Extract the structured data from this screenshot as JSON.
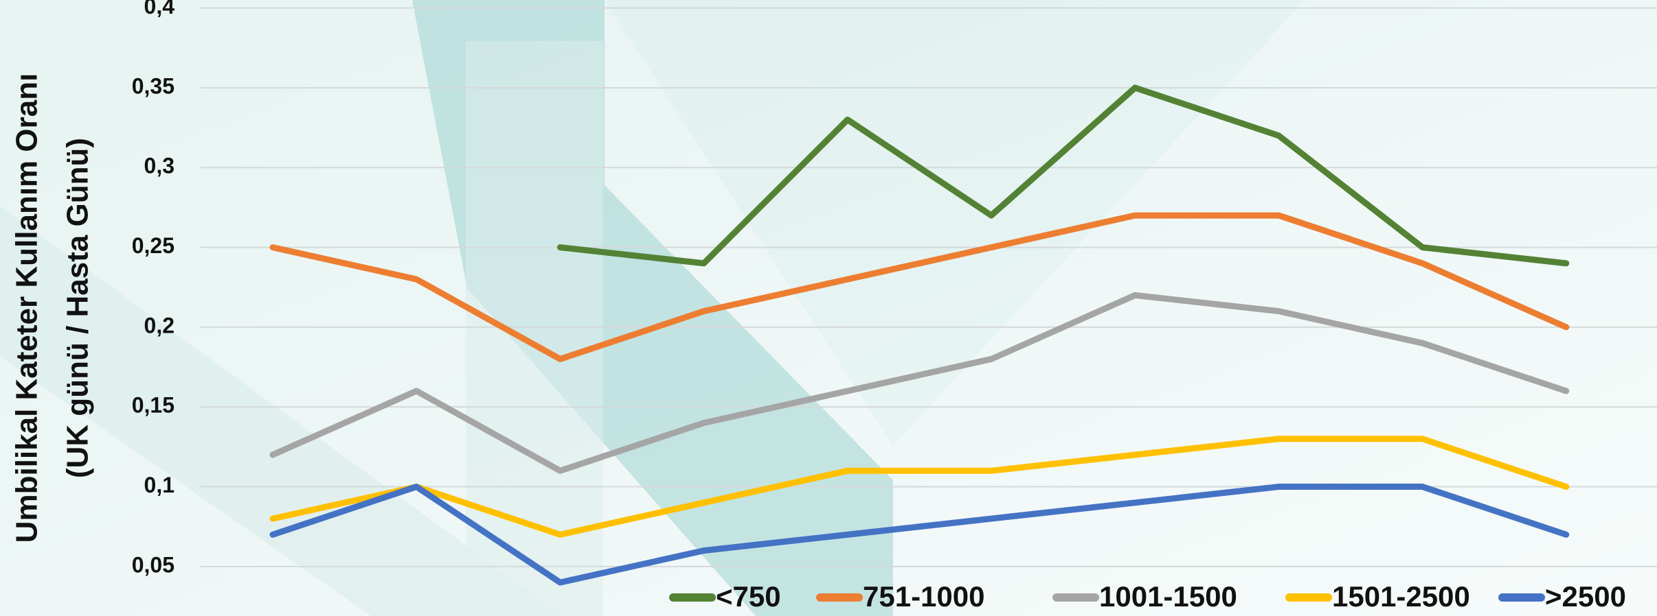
{
  "chart_data": {
    "type": "line",
    "y_label_lines": [
      "Umbilikal Kateter Kullanım Oranı",
      "(UK günü / Hasta Günü)"
    ],
    "categories": [
      null,
      null,
      null,
      null,
      null,
      null,
      null,
      null,
      null,
      null
    ],
    "series": [
      {
        "name": "<750",
        "color": "#548235",
        "values": [
          null,
          null,
          0.25,
          0.24,
          0.33,
          0.27,
          0.35,
          0.32,
          0.25,
          0.24
        ]
      },
      {
        "name": "751-1000",
        "color": "#ed7d31",
        "values": [
          0.25,
          0.23,
          0.18,
          0.21,
          0.23,
          0.25,
          0.27,
          0.27,
          0.24,
          0.2
        ]
      },
      {
        "name": "1001-1500",
        "color": "#a5a5a5",
        "values": [
          0.12,
          0.16,
          0.11,
          0.14,
          0.16,
          0.18,
          0.22,
          0.21,
          0.19,
          0.16
        ]
      },
      {
        "name": "1501-2500",
        "color": "#ffc000",
        "values": [
          0.08,
          0.1,
          0.07,
          0.09,
          0.11,
          0.11,
          0.12,
          0.13,
          0.13,
          0.1
        ]
      },
      {
        "name": ">2500",
        "color": "#4472c4",
        "values": [
          0.07,
          0.1,
          0.04,
          0.06,
          0.07,
          0.08,
          0.09,
          0.1,
          0.1,
          0.07
        ]
      }
    ],
    "ylim": [
      0.019,
      0.405
    ],
    "yticks": [
      {
        "value": 0.05,
        "label": "0,05"
      },
      {
        "value": 0.1,
        "label": "0,1"
      },
      {
        "value": 0.15,
        "label": "0,15"
      },
      {
        "value": 0.2,
        "label": "0,2"
      },
      {
        "value": 0.25,
        "label": "0,25"
      },
      {
        "value": 0.3,
        "label": "0,3"
      },
      {
        "value": 0.35,
        "label": "0,35"
      },
      {
        "value": 0.4,
        "label": "0,4"
      }
    ],
    "grid": true,
    "legend": "bottom-right"
  }
}
